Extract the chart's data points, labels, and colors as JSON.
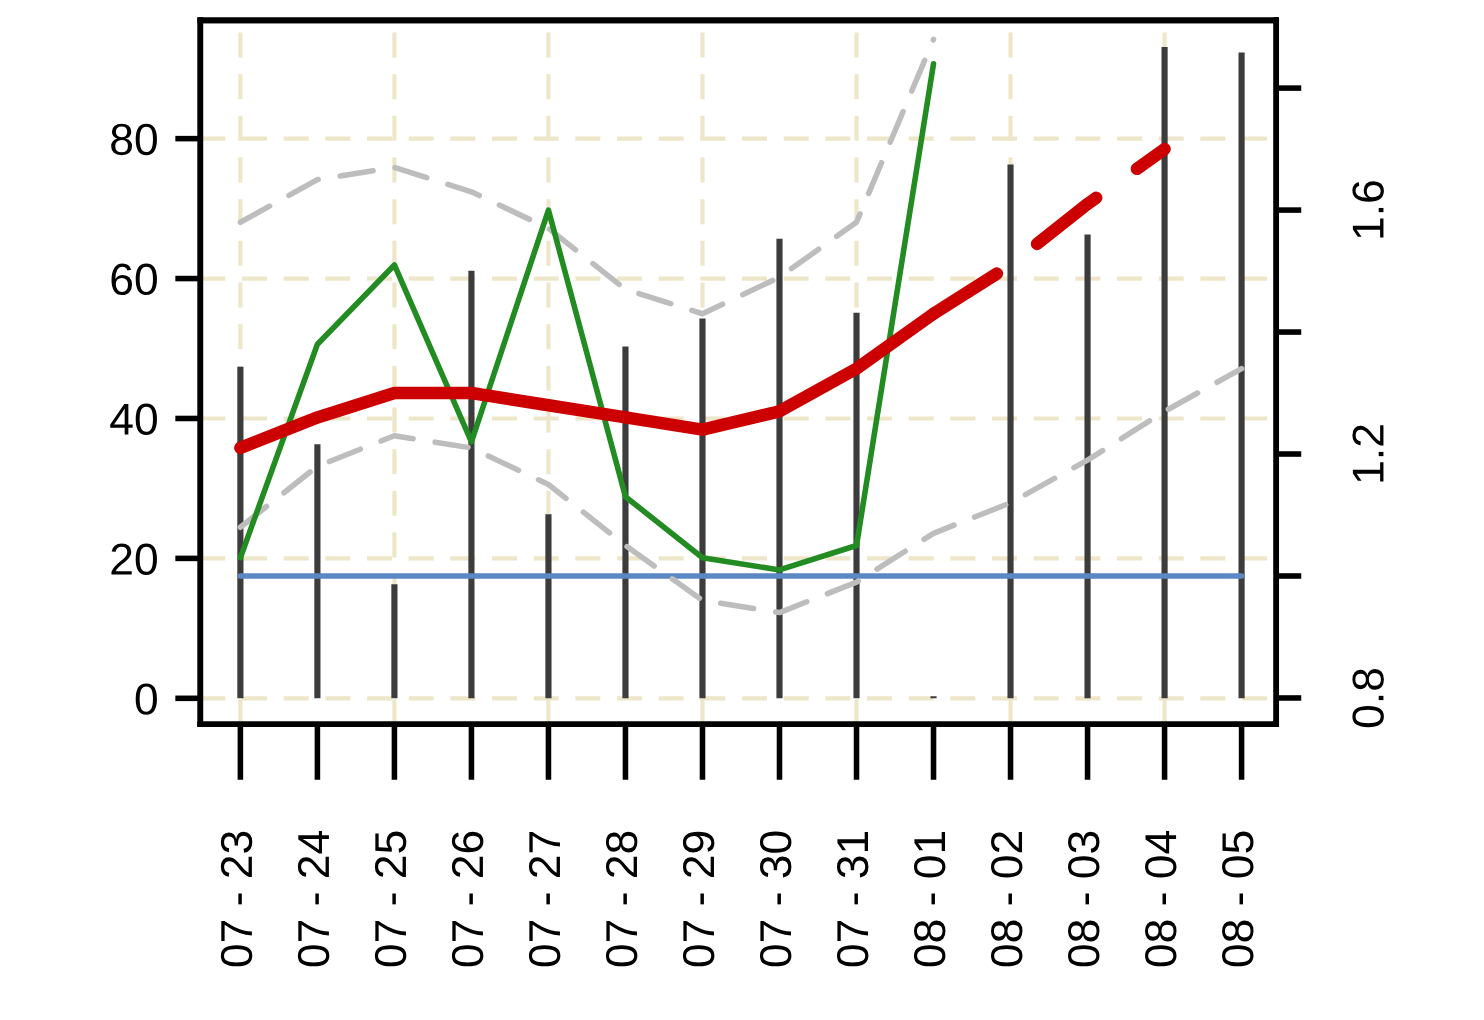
{
  "chart_data": {
    "type": "bar",
    "categories": [
      "07 - 23",
      "07 - 24",
      "07 - 25",
      "07 - 26",
      "07 - 27",
      "07 - 28",
      "07 - 29",
      "07 - 30",
      "07 - 31",
      "08 - 01",
      "08 - 02",
      "08 - 03",
      "08 - 04",
      "08 - 05"
    ],
    "series": [
      {
        "color": "#3c3c3c",
        "values": [
          47.4,
          36.3,
          16.3,
          61.1,
          26.3,
          50.3,
          54.3,
          65.7,
          55.1,
          0.3,
          76.3,
          66.3,
          93.1,
          92.3
        ]
      },
      {
        "type": "line",
        "axis": "y2",
        "color": "#5b87c5",
        "line_style": "solid",
        "values": [
          1.0,
          1.0,
          1.0,
          1.0,
          1.0,
          1.0,
          1.0,
          1.0,
          1.0,
          1.0,
          1.0,
          1.0,
          1.0,
          1.0
        ]
      },
      {
        "type": "line",
        "axis": "y2",
        "color": "#bdbdbd",
        "line_style": "dashed",
        "values": [
          1.58,
          1.65,
          1.67,
          1.63,
          1.57,
          1.47,
          1.43,
          1.49,
          1.58,
          1.88,
          null,
          null,
          null,
          null
        ]
      },
      {
        "type": "line",
        "axis": "y2",
        "color": "#bdbdbd",
        "line_style": "dashed",
        "values": [
          1.08,
          1.18,
          1.23,
          1.21,
          1.15,
          1.05,
          0.96,
          0.94,
          0.99,
          1.07,
          1.12,
          1.19,
          1.27,
          1.34
        ]
      },
      {
        "type": "line",
        "axis": "y2",
        "color": "#228b22",
        "line_style": "solid",
        "values": [
          1.03,
          1.38,
          1.51,
          1.22,
          1.6,
          1.13,
          1.03,
          1.01,
          1.05,
          1.84,
          null,
          null,
          null,
          null
        ]
      },
      {
        "type": "line",
        "axis": "y2",
        "color": "#cc0000",
        "line_style": "solid",
        "values": [
          1.21,
          1.26,
          1.3,
          1.3,
          1.28,
          1.26,
          1.24,
          1.27,
          1.34,
          1.43,
          null,
          null,
          null,
          null
        ]
      },
      {
        "type": "line",
        "axis": "y2",
        "color": "#cc0000",
        "line_style": "dashed",
        "values": [
          null,
          null,
          null,
          null,
          null,
          null,
          null,
          null,
          null,
          1.43,
          1.51,
          1.61,
          1.7,
          null
        ]
      }
    ],
    "ylim": [
      -3.7,
      96.9
    ],
    "yticks": [
      0,
      20,
      40,
      60,
      80
    ],
    "y2lim": [
      0.757,
      1.911
    ],
    "y2ticks": [
      0.8,
      {
        "value": 1.0,
        "label": null
      },
      1.2,
      {
        "value": 1.4,
        "label": null
      },
      1.6,
      {
        "value": 1.8,
        "label": null
      }
    ],
    "grid": true
  }
}
